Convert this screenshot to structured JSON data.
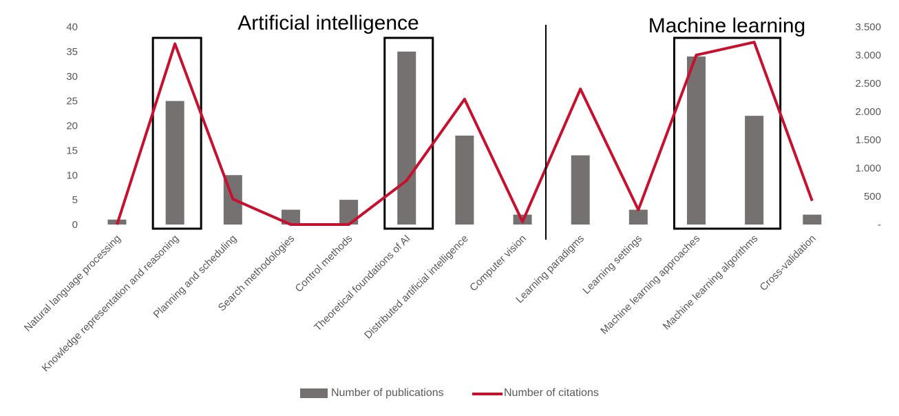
{
  "chart_data": {
    "type": "bar",
    "categories": [
      "Natural language processing",
      "Knowledge representation and reasoning",
      "Planning and scheduling",
      "Search methodologies",
      "Control methods",
      "Theoretical foundations of AI",
      "Distributed artificial intelligence",
      "Computer vision",
      "Learning paradigms",
      "Learning settings",
      "Machine learning approaches",
      "Machine learning algorithms",
      "Cross-validation"
    ],
    "series": [
      {
        "name": "Number of publications",
        "type": "bar",
        "axis": "left",
        "color": "#767171",
        "values": [
          1,
          25,
          10,
          3,
          5,
          35,
          18,
          2,
          14,
          3,
          34,
          22,
          2
        ]
      },
      {
        "name": "Number of citations",
        "type": "line",
        "axis": "right",
        "color": "#C8102E",
        "values": [
          0,
          3200,
          450,
          0,
          0,
          780,
          2220,
          50,
          2400,
          260,
          3000,
          3230,
          420
        ]
      }
    ],
    "ylim_left": [
      0,
      40
    ],
    "ylim_right": [
      0,
      3500
    ],
    "yticks_left": [
      "0",
      "5",
      "10",
      "15",
      "20",
      "25",
      "30",
      "35",
      "40"
    ],
    "yticks_right": [
      "-",
      "500",
      "1.000",
      "1.500",
      "2.000",
      "2.500",
      "3.000",
      "3.500"
    ],
    "annotations": [
      "Artificial intelligence",
      "Machine learning"
    ],
    "highlighted_categories": [
      "Knowledge representation and reasoning",
      "Theoretical foundations of AI",
      "Machine learning approaches",
      "Machine learning algorithms"
    ],
    "legend_position": "bottom",
    "grid": false
  }
}
